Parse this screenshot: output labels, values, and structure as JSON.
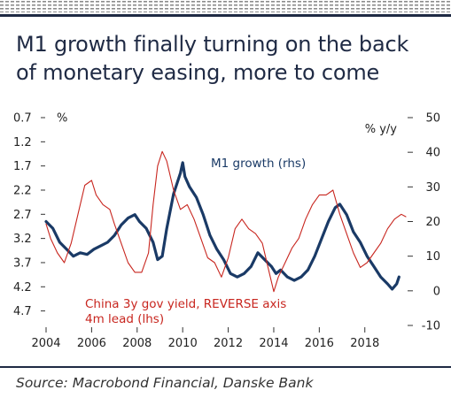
{
  "header": {
    "title_line1": "M1 growth finally turning on the back",
    "title_line2": "of monetary easing, more to come"
  },
  "footer": {
    "source": "Source: Macrobond Financial, Danske Bank"
  },
  "colors": {
    "frame_band": "#1f2a44",
    "dash_pattern": "#8c8c8c",
    "m1_line": "#1a3a66",
    "yield_line": "#c8261f",
    "divider": "#1f2a44"
  },
  "chart_data": {
    "type": "line",
    "xlabel": "",
    "x_ticks": [
      "2004",
      "2006",
      "2008",
      "2010",
      "2012",
      "2014",
      "2016",
      "2018"
    ],
    "left_axis": {
      "unit": "%",
      "ticks": [
        "0.7",
        "1.2",
        "1.7",
        "2.2",
        "2.7",
        "3.2",
        "3.7",
        "4.2",
        "4.7"
      ],
      "range": [
        0.7,
        5.0
      ],
      "reversed": true
    },
    "right_axis": {
      "unit": "% y/y",
      "ticks": [
        "50",
        "40",
        "30",
        "20",
        "10",
        "0",
        "-10"
      ],
      "range": [
        -10,
        50
      ]
    },
    "grid": false,
    "series": [
      {
        "name": "M1 growth (rhs)",
        "axis": "right",
        "color": "#1a3a66",
        "points": [
          [
            2004.0,
            20
          ],
          [
            2004.3,
            18
          ],
          [
            2004.6,
            14
          ],
          [
            2004.9,
            12
          ],
          [
            2005.2,
            10
          ],
          [
            2005.5,
            11
          ],
          [
            2005.8,
            10.5
          ],
          [
            2006.1,
            12
          ],
          [
            2006.4,
            13
          ],
          [
            2006.7,
            14
          ],
          [
            2007.0,
            16
          ],
          [
            2007.3,
            19
          ],
          [
            2007.6,
            21
          ],
          [
            2007.9,
            22
          ],
          [
            2008.1,
            20
          ],
          [
            2008.4,
            18
          ],
          [
            2008.7,
            14
          ],
          [
            2008.9,
            9
          ],
          [
            2009.1,
            10
          ],
          [
            2009.3,
            18
          ],
          [
            2009.6,
            28
          ],
          [
            2009.9,
            34
          ],
          [
            2010.0,
            37
          ],
          [
            2010.1,
            33
          ],
          [
            2010.3,
            30
          ],
          [
            2010.6,
            27
          ],
          [
            2010.9,
            22
          ],
          [
            2011.2,
            16
          ],
          [
            2011.5,
            12
          ],
          [
            2011.8,
            9
          ],
          [
            2012.1,
            5
          ],
          [
            2012.4,
            4
          ],
          [
            2012.7,
            5
          ],
          [
            2013.0,
            7
          ],
          [
            2013.3,
            11
          ],
          [
            2013.6,
            9
          ],
          [
            2013.9,
            7
          ],
          [
            2014.1,
            5
          ],
          [
            2014.3,
            6
          ],
          [
            2014.6,
            4
          ],
          [
            2014.9,
            3
          ],
          [
            2015.2,
            4
          ],
          [
            2015.5,
            6
          ],
          [
            2015.8,
            10
          ],
          [
            2016.1,
            15
          ],
          [
            2016.4,
            20
          ],
          [
            2016.7,
            24
          ],
          [
            2016.9,
            25
          ],
          [
            2017.2,
            22
          ],
          [
            2017.5,
            17
          ],
          [
            2017.8,
            14
          ],
          [
            2018.1,
            10
          ],
          [
            2018.4,
            7
          ],
          [
            2018.7,
            4
          ],
          [
            2019.0,
            2
          ],
          [
            2019.2,
            0.5
          ],
          [
            2019.4,
            2
          ],
          [
            2019.5,
            4
          ]
        ]
      },
      {
        "name": "China 3y gov yield, REVERSE axis 4m lead (lhs)",
        "label_line1": "China 3y gov yield, REVERSE axis",
        "label_line2": "4m lead (lhs)",
        "axis": "left",
        "color": "#c8261f",
        "points": [
          [
            2004.0,
            2.9
          ],
          [
            2004.2,
            3.2
          ],
          [
            2004.5,
            3.5
          ],
          [
            2004.8,
            3.7
          ],
          [
            2005.1,
            3.3
          ],
          [
            2005.4,
            2.7
          ],
          [
            2005.7,
            2.1
          ],
          [
            2006.0,
            2.0
          ],
          [
            2006.2,
            2.3
          ],
          [
            2006.5,
            2.5
          ],
          [
            2006.8,
            2.6
          ],
          [
            2007.0,
            2.9
          ],
          [
            2007.3,
            3.3
          ],
          [
            2007.6,
            3.7
          ],
          [
            2007.9,
            3.9
          ],
          [
            2008.2,
            3.9
          ],
          [
            2008.5,
            3.5
          ],
          [
            2008.7,
            2.5
          ],
          [
            2008.9,
            1.7
          ],
          [
            2009.1,
            1.4
          ],
          [
            2009.3,
            1.6
          ],
          [
            2009.6,
            2.2
          ],
          [
            2009.9,
            2.6
          ],
          [
            2010.2,
            2.5
          ],
          [
            2010.5,
            2.8
          ],
          [
            2010.8,
            3.2
          ],
          [
            2011.1,
            3.6
          ],
          [
            2011.4,
            3.7
          ],
          [
            2011.7,
            4.0
          ],
          [
            2012.0,
            3.6
          ],
          [
            2012.3,
            3.0
          ],
          [
            2012.6,
            2.8
          ],
          [
            2012.9,
            3.0
          ],
          [
            2013.2,
            3.1
          ],
          [
            2013.5,
            3.3
          ],
          [
            2013.8,
            3.9
          ],
          [
            2014.0,
            4.3
          ],
          [
            2014.2,
            4.0
          ],
          [
            2014.5,
            3.7
          ],
          [
            2014.8,
            3.4
          ],
          [
            2015.1,
            3.2
          ],
          [
            2015.4,
            2.8
          ],
          [
            2015.7,
            2.5
          ],
          [
            2016.0,
            2.3
          ],
          [
            2016.3,
            2.3
          ],
          [
            2016.6,
            2.2
          ],
          [
            2016.9,
            2.7
          ],
          [
            2017.2,
            3.1
          ],
          [
            2017.5,
            3.5
          ],
          [
            2017.8,
            3.8
          ],
          [
            2018.1,
            3.7
          ],
          [
            2018.4,
            3.5
          ],
          [
            2018.7,
            3.3
          ],
          [
            2019.0,
            3.0
          ],
          [
            2019.3,
            2.8
          ],
          [
            2019.6,
            2.7
          ],
          [
            2019.8,
            2.75
          ]
        ]
      }
    ]
  }
}
